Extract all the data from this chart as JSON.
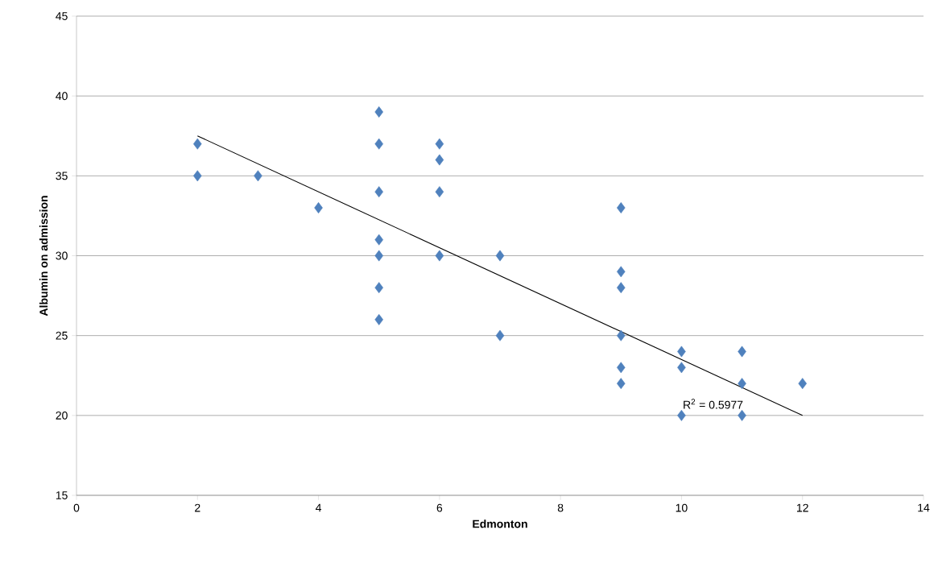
{
  "chart_data": {
    "type": "scatter",
    "xlabel": "Edmonton",
    "ylabel": "Albumin on admission",
    "xlim": [
      0,
      14
    ],
    "xticks": [
      0,
      2,
      4,
      6,
      8,
      10,
      12,
      14
    ],
    "ylim": [
      15,
      45
    ],
    "yticks": [
      15,
      20,
      25,
      30,
      35,
      40,
      45
    ],
    "grid": "y",
    "marker": "diamond",
    "series": [
      {
        "color": "#4f81bd",
        "x": [
          2,
          2,
          3,
          4,
          5,
          5,
          5,
          5,
          5,
          5,
          5,
          6,
          6,
          6,
          6,
          7,
          7,
          9,
          9,
          9,
          9,
          9,
          9,
          10,
          10,
          10,
          11,
          11,
          11,
          12
        ],
        "values": [
          37,
          35,
          35,
          33,
          39,
          37,
          34,
          31,
          30,
          28,
          26,
          37,
          36,
          34,
          30,
          30,
          25,
          33,
          29,
          28,
          25,
          23,
          22,
          24,
          23,
          20,
          24,
          22,
          20,
          22
        ]
      },
      {
        "type": "line",
        "color": "#000000",
        "marker": "none",
        "x": [
          2,
          12
        ],
        "values": [
          37.5,
          20
        ]
      }
    ],
    "annotations": [
      {
        "text": "R$^{2}$ = 0.5977",
        "x": 10,
        "y": 20
      }
    ]
  }
}
